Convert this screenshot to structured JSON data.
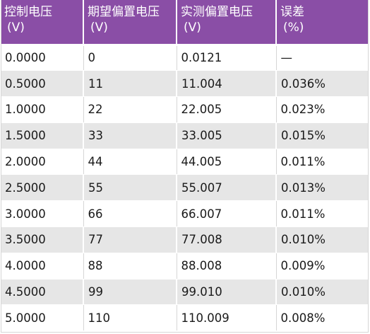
{
  "table": {
    "headers": [
      {
        "line1": "控制电压",
        "line2": "(V)"
      },
      {
        "line1": "期望偏置电压",
        "line2": "(V)"
      },
      {
        "line1": "实测偏置电压",
        "line2": "(V)"
      },
      {
        "line1": "误差",
        "line2": "(%)"
      }
    ],
    "rows": [
      [
        "0.0000",
        "0",
        "0.0121",
        "—"
      ],
      [
        "0.5000",
        "11",
        "11.004",
        "0.036%"
      ],
      [
        "1.0000",
        "22",
        "22.005",
        "0.023%"
      ],
      [
        "1.5000",
        "33",
        "33.005",
        "0.015%"
      ],
      [
        "2.0000",
        "44",
        "44.005",
        "0.011%"
      ],
      [
        "2.5000",
        "55",
        "55.007",
        "0.013%"
      ],
      [
        "3.0000",
        "66",
        "66.007",
        "0.011%"
      ],
      [
        "3.5000",
        "77",
        "77.008",
        "0.010%"
      ],
      [
        "4.0000",
        "88",
        "88.008",
        "0.009%"
      ],
      [
        "4.5000",
        "99",
        "99.010",
        "0.010%"
      ],
      [
        "5.0000",
        "110",
        "110.009",
        "0.008%"
      ]
    ]
  },
  "colors": {
    "header_bg": "#8a4ea6",
    "header_text": "#ffffff",
    "row_alt_bg": "#e6e6e6",
    "row_bg": "#ffffff",
    "cell_text": "#1a1a1a"
  }
}
